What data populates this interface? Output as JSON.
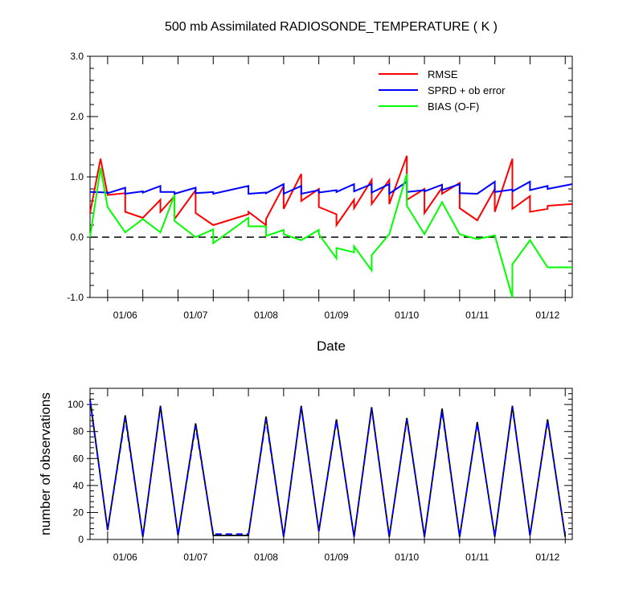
{
  "figure": {
    "title": "500 mb Assimilated RADIOSONDE_TEMPERATURE ( K )"
  },
  "chart_data": [
    {
      "type": "line",
      "title": "500 mb Assimilated RADIOSONDE_TEMPERATURE ( K )",
      "xlabel": "Date",
      "ylabel": "",
      "xlim": [
        0.5,
        14.2
      ],
      "ylim": [
        -1.0,
        3.0
      ],
      "x_ticks": [
        {
          "x": 1.5,
          "label": "01/06"
        },
        {
          "x": 3.5,
          "label": "01/07"
        },
        {
          "x": 5.5,
          "label": "01/08"
        },
        {
          "x": 7.5,
          "label": "01/09"
        },
        {
          "x": 9.5,
          "label": "01/10"
        },
        {
          "x": 11.5,
          "label": "01/11"
        },
        {
          "x": 13.5,
          "label": "01/12"
        }
      ],
      "y_ticks": [
        {
          "y": 3.0,
          "label": "3.0"
        },
        {
          "y": 2.0,
          "label": "2.0"
        },
        {
          "y": 1.0,
          "label": "1.0"
        },
        {
          "y": 0.0,
          "label": "0.0"
        },
        {
          "y": -1.0,
          "label": "-1.0"
        }
      ],
      "reference_line": {
        "y": 0.0,
        "style": "dashed",
        "color": "#000000"
      },
      "legend_position": "top-right",
      "series": [
        {
          "name": "RMSE",
          "color": "#ff0000",
          "x": [
            0.5,
            0.8,
            1.0,
            1.0,
            1.5,
            1.5,
            2.0,
            2.5,
            2.5,
            2.9,
            2.9,
            3.5,
            3.5,
            4.0,
            4.0,
            5.0,
            5.0,
            5.5,
            5.5,
            6.0,
            6.0,
            6.5,
            6.5,
            7.0,
            7.0,
            7.5,
            7.5,
            8.0,
            8.0,
            8.5,
            8.5,
            9.0,
            9.0,
            9.5,
            9.5,
            10.0,
            10.0,
            10.5,
            10.5,
            11.0,
            11.0,
            11.5,
            11.5,
            12.0,
            12.0,
            12.5,
            12.5,
            13.0,
            13.0,
            13.5,
            13.5,
            14.2
          ],
          "y": [
            0.4,
            1.3,
            0.7,
            0.7,
            0.73,
            0.42,
            0.32,
            0.62,
            0.42,
            0.68,
            0.3,
            0.78,
            0.4,
            0.2,
            0.2,
            0.38,
            0.42,
            0.2,
            0.3,
            0.85,
            0.47,
            1.05,
            0.6,
            0.8,
            0.5,
            0.38,
            0.2,
            0.62,
            0.48,
            0.95,
            0.55,
            0.95,
            0.55,
            1.35,
            0.62,
            0.8,
            0.4,
            0.82,
            0.72,
            0.9,
            0.48,
            0.28,
            0.28,
            0.8,
            0.42,
            1.3,
            0.47,
            0.68,
            0.42,
            0.47,
            0.52,
            0.55
          ]
        },
        {
          "name": "SPRD + ob error",
          "color": "#0000ff",
          "x": [
            0.5,
            1.0,
            1.0,
            1.5,
            1.5,
            2.0,
            2.0,
            2.5,
            2.5,
            2.9,
            2.9,
            3.5,
            3.5,
            4.0,
            4.0,
            5.0,
            5.0,
            5.5,
            5.5,
            6.0,
            6.0,
            6.5,
            6.5,
            7.0,
            7.0,
            7.5,
            7.5,
            8.0,
            8.0,
            8.5,
            8.5,
            9.0,
            9.0,
            9.5,
            9.5,
            10.0,
            10.0,
            10.5,
            10.5,
            11.0,
            11.0,
            11.5,
            11.5,
            12.0,
            12.0,
            12.5,
            12.5,
            13.0,
            13.0,
            13.5,
            13.5,
            14.2
          ],
          "y": [
            0.75,
            0.74,
            0.73,
            0.82,
            0.72,
            0.76,
            0.74,
            0.85,
            0.75,
            0.75,
            0.72,
            0.82,
            0.73,
            0.75,
            0.72,
            0.85,
            0.72,
            0.74,
            0.73,
            0.88,
            0.72,
            0.85,
            0.72,
            0.78,
            0.74,
            0.78,
            0.75,
            0.88,
            0.76,
            0.88,
            0.74,
            0.88,
            0.72,
            0.92,
            0.75,
            0.78,
            0.76,
            0.87,
            0.78,
            0.88,
            0.73,
            0.72,
            0.72,
            0.92,
            0.75,
            0.79,
            0.76,
            0.92,
            0.78,
            0.85,
            0.8,
            0.88
          ]
        },
        {
          "name": "BIAS (O-F)",
          "color": "#00ff00",
          "x": [
            0.5,
            0.8,
            1.0,
            1.0,
            1.5,
            1.5,
            2.0,
            2.5,
            2.5,
            2.9,
            2.9,
            3.5,
            3.5,
            4.0,
            4.0,
            5.0,
            5.0,
            5.5,
            5.5,
            6.0,
            6.0,
            6.5,
            6.5,
            7.0,
            7.0,
            7.5,
            7.5,
            8.0,
            8.0,
            8.5,
            8.5,
            9.0,
            9.0,
            9.5,
            9.5,
            10.0,
            10.0,
            10.5,
            10.5,
            11.0,
            11.0,
            11.5,
            11.5,
            12.0,
            12.0,
            12.5,
            12.5,
            13.0,
            13.0,
            13.5,
            13.5,
            14.2
          ],
          "y": [
            0.0,
            1.15,
            0.5,
            0.5,
            0.08,
            0.08,
            0.3,
            0.08,
            0.08,
            0.7,
            0.27,
            0.0,
            0.0,
            0.13,
            -0.1,
            0.32,
            0.18,
            0.18,
            0.02,
            0.12,
            0.05,
            -0.05,
            -0.05,
            0.12,
            0.05,
            -0.35,
            -0.18,
            -0.25,
            -0.15,
            -0.55,
            -0.3,
            0.05,
            0.05,
            1.05,
            0.52,
            0.05,
            0.05,
            0.58,
            0.58,
            0.05,
            0.05,
            -0.03,
            -0.03,
            0.03,
            0.03,
            -1.0,
            -0.45,
            -0.05,
            -0.05,
            -0.5,
            -0.5,
            -0.5
          ]
        }
      ]
    },
    {
      "type": "line",
      "title": "",
      "xlabel": "",
      "ylabel": "number of observations",
      "xlim": [
        0.5,
        14.2
      ],
      "ylim": [
        0,
        112
      ],
      "x_ticks": [
        {
          "x": 1.5,
          "label": "01/06"
        },
        {
          "x": 3.5,
          "label": "01/07"
        },
        {
          "x": 5.5,
          "label": "01/08"
        },
        {
          "x": 7.5,
          "label": "01/09"
        },
        {
          "x": 9.5,
          "label": "01/10"
        },
        {
          "x": 11.5,
          "label": "01/11"
        },
        {
          "x": 13.5,
          "label": "01/12"
        }
      ],
      "y_ticks": [
        {
          "y": 0,
          "label": "0"
        },
        {
          "y": 20,
          "label": "20"
        },
        {
          "y": 40,
          "label": "40"
        },
        {
          "y": 60,
          "label": "60"
        },
        {
          "y": 80,
          "label": "80"
        },
        {
          "y": 100,
          "label": "100"
        }
      ],
      "series": [
        {
          "color": "#000000",
          "style": "solid",
          "x": [
            0.5,
            1.0,
            1.5,
            2.0,
            2.5,
            3.0,
            3.5,
            4.0,
            5.0,
            5.5,
            6.0,
            6.5,
            7.0,
            7.5,
            8.0,
            8.5,
            9.0,
            9.5,
            10.0,
            10.5,
            11.0,
            11.5,
            12.0,
            12.5,
            13.0,
            13.5,
            14.0
          ],
          "y": [
            104,
            7,
            92,
            2,
            99,
            3,
            86,
            3,
            3,
            91,
            2,
            99,
            6,
            89,
            2,
            98,
            2,
            90,
            2,
            97,
            2,
            87,
            2,
            99,
            3,
            89,
            2
          ]
        },
        {
          "color": "#0000ff",
          "style": "dashed",
          "x": [
            0.5,
            1.0,
            1.5,
            2.0,
            2.5,
            3.0,
            3.5,
            4.0,
            5.0,
            5.5,
            6.0,
            6.5,
            7.0,
            7.5,
            8.0,
            8.5,
            9.0,
            9.5,
            10.0,
            10.5,
            11.0,
            11.5,
            12.0,
            12.5,
            13.0,
            13.5,
            14.0
          ],
          "y": [
            103,
            7,
            90,
            2,
            98,
            3,
            84,
            4,
            4,
            89,
            2,
            98,
            6,
            88,
            2,
            97,
            2,
            89,
            2,
            95,
            2,
            86,
            2,
            98,
            3,
            88,
            2
          ]
        }
      ]
    }
  ]
}
